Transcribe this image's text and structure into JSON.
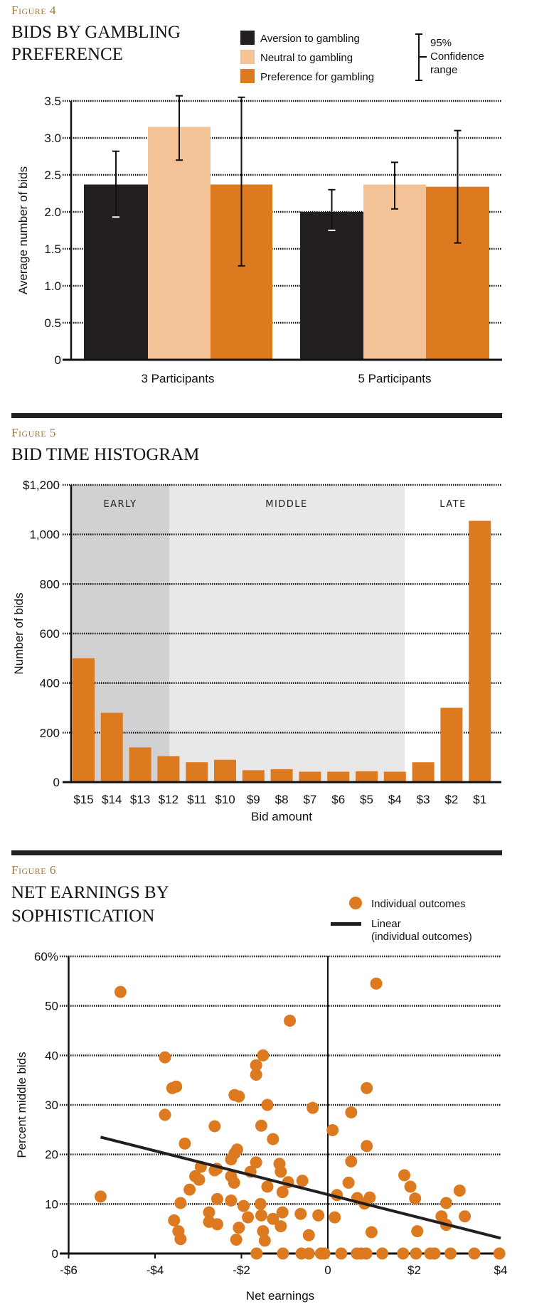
{
  "colors": {
    "aversion": "#231f20",
    "neutral": "#f3c397",
    "preference": "#dd7a20",
    "early_band": "#d1d1d3",
    "middle_band": "#e8e8e8",
    "figure_label": "#a3783a"
  },
  "chart_data": [
    {
      "type": "bar",
      "figure_label": "Figure 4",
      "title_lines": [
        "BIDS BY GAMBLING",
        "PREFERENCE"
      ],
      "ylabel": "Average number of bids",
      "xlabel": "",
      "ylim": [
        0,
        3.5
      ],
      "yticks": [
        "0",
        "0.5",
        "1.0",
        "1.5",
        "2.0",
        "2.5",
        "3.0",
        "3.5"
      ],
      "categories": [
        "3 Participants",
        "5 Participants"
      ],
      "series": [
        {
          "name": "Aversion to gambling",
          "values": [
            2.37,
            2.0
          ],
          "ci_low": [
            1.93,
            1.75
          ],
          "ci_high": [
            2.82,
            2.3
          ]
        },
        {
          "name": "Neutral to gambling",
          "values": [
            3.15,
            2.37
          ],
          "ci_low": [
            2.7,
            2.04
          ],
          "ci_high": [
            3.57,
            2.67
          ]
        },
        {
          "name": "Preference for gambling",
          "values": [
            2.37,
            2.34
          ],
          "ci_low": [
            1.27,
            1.58
          ],
          "ci_high": [
            3.55,
            3.1
          ]
        }
      ],
      "ci_legend": [
        "95%",
        "Confidence",
        "range"
      ],
      "grid": true
    },
    {
      "type": "bar",
      "figure_label": "Figure 5",
      "title_lines": [
        "BID TIME HISTOGRAM"
      ],
      "ylabel": "Number of bids",
      "xlabel": "Bid amount",
      "ylim": [
        0,
        1200
      ],
      "yticks": [
        "0",
        "200",
        "400",
        "600",
        "800",
        "1,000",
        "$1,200"
      ],
      "categories": [
        "$15",
        "$14",
        "$13",
        "$12",
        "$11",
        "$10",
        "$9",
        "$8",
        "$7",
        "$6",
        "$5",
        "$4",
        "$3",
        "$2",
        "$1"
      ],
      "values": [
        500,
        280,
        140,
        105,
        80,
        90,
        48,
        52,
        42,
        42,
        44,
        42,
        80,
        300,
        1055
      ],
      "bands": [
        {
          "label": "EARLY",
          "from": "$15",
          "to": "$12"
        },
        {
          "label": "MIDDLE",
          "from": "$11",
          "to": "$4"
        },
        {
          "label": "LATE",
          "from": "$3",
          "to": "$1"
        }
      ],
      "grid": true
    },
    {
      "type": "scatter",
      "figure_label": "Figure 6",
      "title_lines": [
        "NET EARNINGS BY",
        "SOPHISTICATION"
      ],
      "ylabel": "Percent middle bids",
      "xlabel": "Net earnings",
      "xlim": [
        -6,
        4
      ],
      "ylim": [
        0,
        60
      ],
      "xticks": [
        "-$6",
        "-$4",
        "-$2",
        "0",
        "$2",
        "$4"
      ],
      "yticks": [
        "0",
        "10",
        "20",
        "30",
        "40",
        "50",
        "60%"
      ],
      "legend": [
        "Individual outcomes",
        "Linear",
        "(individual outcomes)"
      ],
      "points": [
        [
          -4.8,
          52.8
        ],
        [
          1.12,
          54.5
        ],
        [
          -0.88,
          47
        ],
        [
          -3.77,
          39.6
        ],
        [
          -1.5,
          40
        ],
        [
          -1.66,
          38
        ],
        [
          -1.66,
          36.1
        ],
        [
          -3.6,
          33.4
        ],
        [
          -3.51,
          33.7
        ],
        [
          -2.16,
          32
        ],
        [
          -2.06,
          31.7
        ],
        [
          -1.4,
          30
        ],
        [
          -0.35,
          29.4
        ],
        [
          0.9,
          33.4
        ],
        [
          0.54,
          28.5
        ],
        [
          -3.77,
          28
        ],
        [
          -2.62,
          25.7
        ],
        [
          -1.54,
          25.8
        ],
        [
          0.11,
          24.9
        ],
        [
          -1.27,
          23.1
        ],
        [
          -3.31,
          22.2
        ],
        [
          0.9,
          21.7
        ],
        [
          -2.1,
          21
        ],
        [
          -2.16,
          20.2
        ],
        [
          -2.24,
          19
        ],
        [
          0.54,
          18.6
        ],
        [
          -2.57,
          17.1
        ],
        [
          -2.62,
          16.8
        ],
        [
          -2.94,
          17.5
        ],
        [
          -1.66,
          18.4
        ],
        [
          -1.79,
          16.5
        ],
        [
          -1.12,
          18.1
        ],
        [
          -1.09,
          16.5
        ],
        [
          -3.07,
          15.6
        ],
        [
          -2.98,
          14.9
        ],
        [
          -2.24,
          15.6
        ],
        [
          -2.17,
          14.3
        ],
        [
          -0.59,
          14.7
        ],
        [
          -0.92,
          14.4
        ],
        [
          0.48,
          14.3
        ],
        [
          1.77,
          15.8
        ],
        [
          -3.2,
          12.9
        ],
        [
          -1.4,
          13.5
        ],
        [
          -1.05,
          12.4
        ],
        [
          0.21,
          11.8
        ],
        [
          1.91,
          13.5
        ],
        [
          3.05,
          12.7
        ],
        [
          -5.26,
          11.5
        ],
        [
          -2.56,
          11
        ],
        [
          -2.24,
          10.7
        ],
        [
          0.68,
          11.2
        ],
        [
          0.97,
          11.3
        ],
        [
          0.85,
          10.1
        ],
        [
          2.02,
          11.1
        ],
        [
          2.74,
          10.2
        ],
        [
          -3.41,
          10.2
        ],
        [
          -1.95,
          9.6
        ],
        [
          -1.56,
          10
        ],
        [
          -1.54,
          7.7
        ],
        [
          -1.05,
          8.3
        ],
        [
          -0.63,
          8
        ],
        [
          -0.22,
          7.7
        ],
        [
          0.16,
          7.3
        ],
        [
          -2.75,
          8.3
        ],
        [
          -2.75,
          6.4
        ],
        [
          -2.56,
          5.9
        ],
        [
          -1.85,
          7.3
        ],
        [
          -1.27,
          7
        ],
        [
          -3.56,
          6.7
        ],
        [
          2.63,
          7.5
        ],
        [
          2.74,
          5.8
        ],
        [
          3.17,
          7.5
        ],
        [
          -2.06,
          5.2
        ],
        [
          -1.09,
          5.5
        ],
        [
          -3.46,
          4.5
        ],
        [
          -3.41,
          2.9
        ],
        [
          -1.5,
          4.5
        ],
        [
          -1.46,
          2.6
        ],
        [
          -2.12,
          2.8
        ],
        [
          -0.44,
          3.7
        ],
        [
          1.01,
          4.3
        ],
        [
          2.07,
          4.5
        ],
        [
          -1.65,
          0
        ],
        [
          -1.04,
          0
        ],
        [
          -0.61,
          0
        ],
        [
          -0.44,
          0
        ],
        [
          -0.16,
          0
        ],
        [
          -0.08,
          0
        ],
        [
          0.31,
          0
        ],
        [
          0.67,
          0
        ],
        [
          0.77,
          0
        ],
        [
          0.89,
          0
        ],
        [
          1.26,
          0
        ],
        [
          1.74,
          0
        ],
        [
          2.04,
          0
        ],
        [
          2.37,
          0
        ],
        [
          2.47,
          0
        ],
        [
          2.84,
          0
        ],
        [
          3.39,
          0
        ],
        [
          3.97,
          0
        ]
      ],
      "trendline": [
        [
          -5.26,
          23.5
        ],
        [
          4,
          3.1
        ]
      ],
      "grid": true
    }
  ]
}
